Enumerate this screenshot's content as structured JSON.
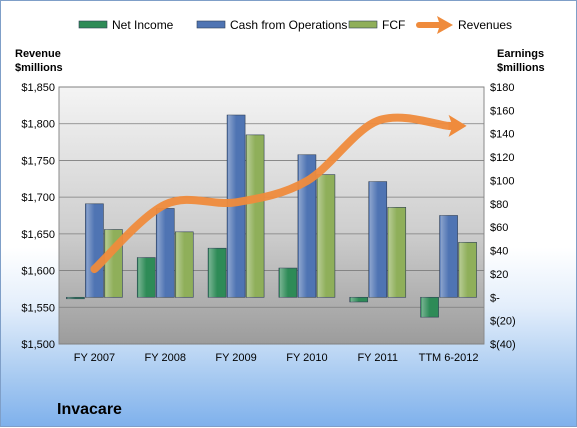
{
  "chart_data": {
    "type": "bar",
    "company": "Invacare",
    "categories": [
      "FY 2007",
      "FY 2008",
      "FY 2009",
      "FY 2010",
      "FY 2011",
      "TTM 6-2012"
    ],
    "left_axis": {
      "title_line1": "Revenue",
      "title_line2": "$millions",
      "min": 1500,
      "max": 1850,
      "step": 50,
      "ticks": [
        "$1,500",
        "$1,550",
        "$1,600",
        "$1,650",
        "$1,700",
        "$1,750",
        "$1,800",
        "$1,850"
      ]
    },
    "right_axis": {
      "title_line1": "Earnings",
      "title_line2": "$millions",
      "min": -40,
      "max": 180,
      "step": 20,
      "ticks": [
        "$(40)",
        "$(20)",
        "$-",
        "$20",
        "$40",
        "$60",
        "$80",
        "$100",
        "$120",
        "$140",
        "$160",
        "$180"
      ]
    },
    "series": [
      {
        "name": "Net Income",
        "type": "bar",
        "axis": "right",
        "color": "#2e8b57",
        "values": [
          -1,
          34,
          42,
          25,
          -4,
          -17
        ]
      },
      {
        "name": "Cash from Operations",
        "type": "bar",
        "axis": "right",
        "color": "#4f74b3",
        "values": [
          80,
          76,
          156,
          122,
          99,
          70
        ]
      },
      {
        "name": "FCF",
        "type": "bar",
        "axis": "right",
        "color": "#8faf5a",
        "values": [
          58,
          56,
          139,
          105,
          77,
          47
        ]
      },
      {
        "name": "Revenues",
        "type": "line",
        "axis": "left",
        "color": "#ef8b3c",
        "values": [
          1602,
          1690,
          1693,
          1722,
          1804,
          1797
        ]
      }
    ],
    "grid": true,
    "legend_position": "top"
  }
}
